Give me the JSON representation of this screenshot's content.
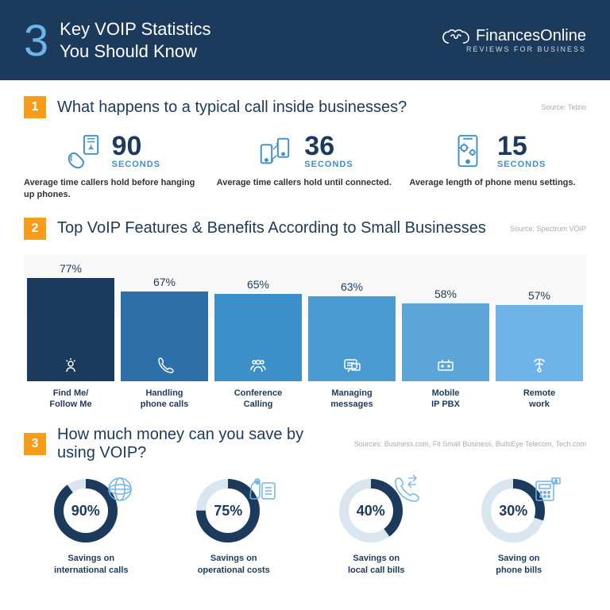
{
  "header": {
    "number": "3",
    "title_l1": "Key VOIP Statistics",
    "title_l2": "You Should Know",
    "logo_name": "FinancesOnline",
    "logo_sub": "REVIEWS FOR BUSINESS"
  },
  "sec1": {
    "num": "1",
    "title": "What happens to a typical call inside businesses?",
    "source": "Source: Telzio",
    "stats": [
      {
        "value": "90",
        "unit": "SECONDS",
        "desc": "Average time callers hold before hanging up phones."
      },
      {
        "value": "36",
        "unit": "SECONDS",
        "desc": "Average time callers hold until connected."
      },
      {
        "value": "15",
        "unit": "SECONDS",
        "desc": "Average length of phone menu settings."
      }
    ]
  },
  "sec2": {
    "num": "2",
    "title": "Top VoIP Features & Benefits According to Small Businesses",
    "source": "Source: Spectrum VOIP",
    "max_height": 130,
    "bars": [
      {
        "pct": 77,
        "label": "Find Me/\nFollow Me",
        "color": "#1b3a5c"
      },
      {
        "pct": 67,
        "label": "Handling\nphone calls",
        "color": "#2d6fa8"
      },
      {
        "pct": 65,
        "label": "Conference\nCalling",
        "color": "#3d8fc9"
      },
      {
        "pct": 63,
        "label": "Managing\nmessages",
        "color": "#4a9bd1"
      },
      {
        "pct": 58,
        "label": "Mobile\nIP PBX",
        "color": "#5ba6d6"
      },
      {
        "pct": 57,
        "label": "Remote\nwork",
        "color": "#6fb4e8"
      }
    ]
  },
  "sec3": {
    "num": "3",
    "title": "How much money can you save by using VOIP?",
    "source": "Sources: Business.com, Fit Small Business, BullsEye Telecom, Tech.com",
    "ring_fill": "#1b3a5c",
    "ring_bg": "#d9e6f0",
    "donuts": [
      {
        "pct": 90,
        "label": "Savings on\ninternational calls"
      },
      {
        "pct": 75,
        "label": "Savings on\noperational costs"
      },
      {
        "pct": 40,
        "label": "Savings on\nlocal call bills"
      },
      {
        "pct": 30,
        "label": "Saving on\nphone bills"
      }
    ]
  }
}
